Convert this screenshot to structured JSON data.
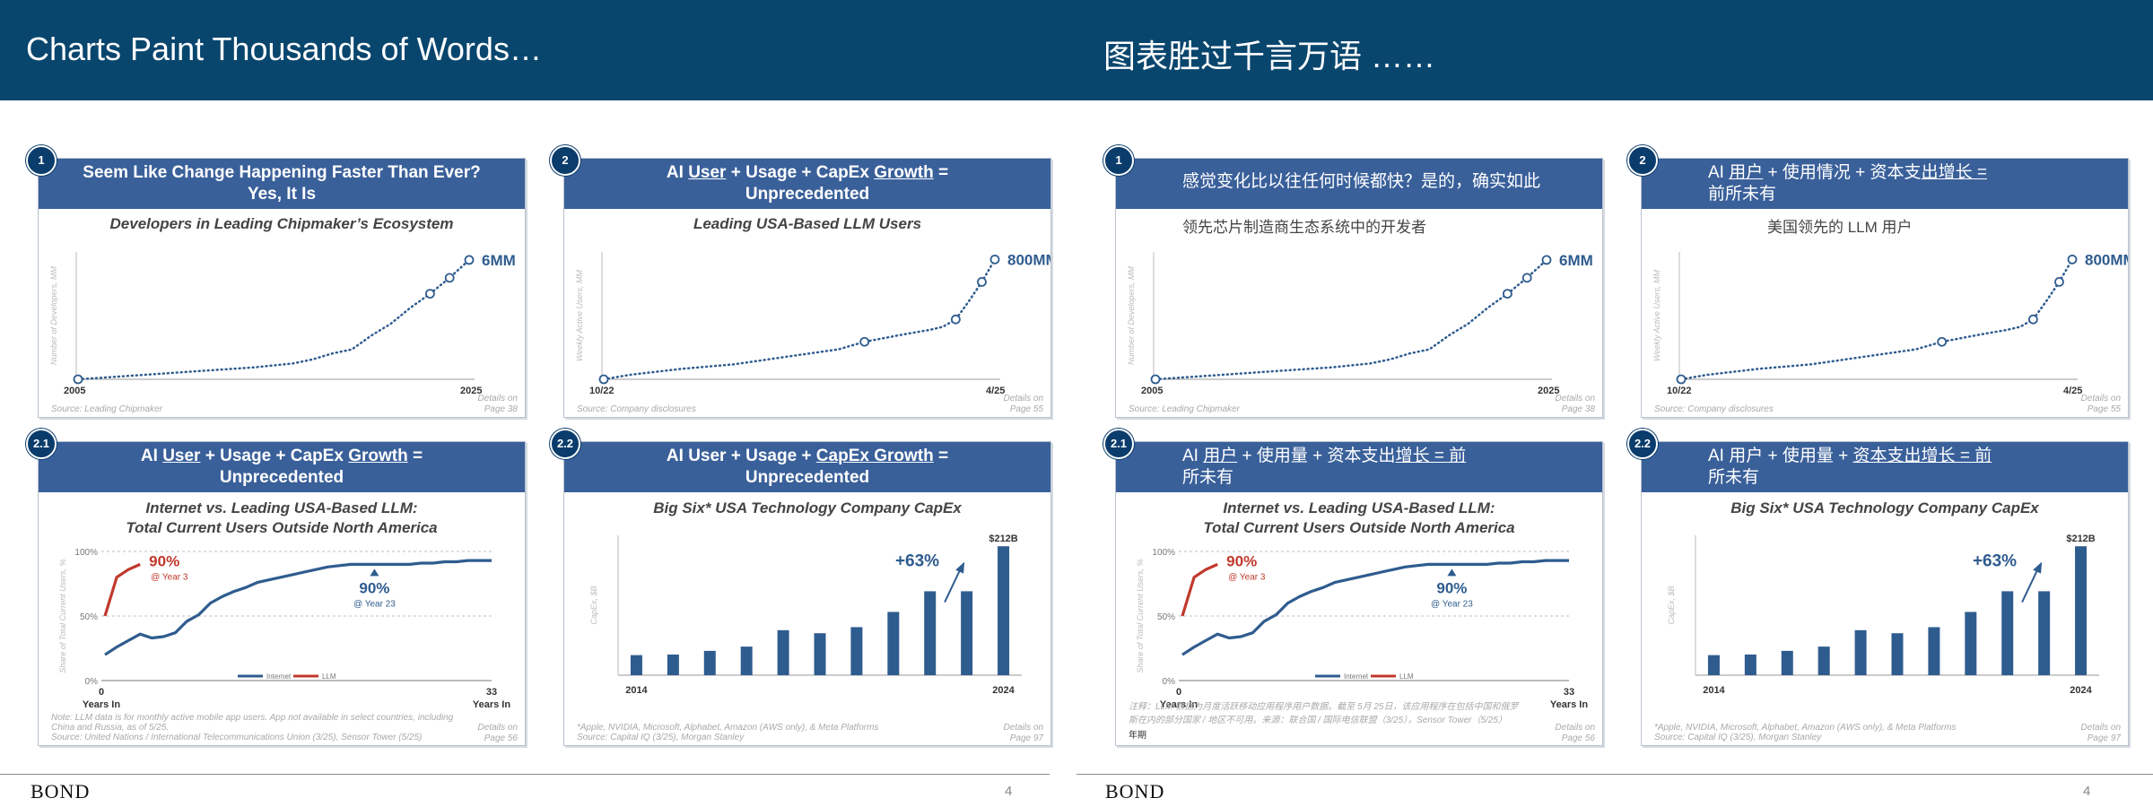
{
  "header": {
    "left_title": "Charts Paint Thousands of Words…",
    "right_title": "图表胜过千言万语 ……"
  },
  "footer": {
    "brand": "BOND",
    "page": "4"
  },
  "left": {
    "p1": {
      "badge": "1",
      "title_l1": "Seem Like Change Happening Faster Than Ever?",
      "title_l2": "Yes, It Is",
      "subtitle": "Developers in Leading Chipmaker’s Ecosystem",
      "source": "Source: Leading Chipmaker",
      "details": "Details on Page 38"
    },
    "p2": {
      "badge": "2",
      "t_ai": "AI ",
      "t_user": "User",
      "t_mid": " + Usage + CapEx ",
      "t_growth": "Growth",
      "t_eq": " =",
      "title_l2": "Unprecedented",
      "subtitle": "Leading USA-Based LLM Users",
      "source": "Source: Company disclosures",
      "details": "Details on Page 55"
    },
    "p3": {
      "badge": "2.1",
      "t_ai": "AI ",
      "t_user": "User",
      "t_mid": " + Usage + CapEx ",
      "t_growth": "Growth",
      "t_eq": " =",
      "title_l2": "Unprecedented",
      "subtitle_l1": "Internet vs. Leading USA-Based LLM:",
      "subtitle_l2": "Total Current Users Outside North America",
      "note1": "Note: LLM data is for monthly active mobile app users. App not available in select countries, including",
      "note2": "China and Russia, as of 5/25.",
      "source": "Source: United Nations / International Telecommunications Union (3/25), Sensor Tower (5/25)",
      "details": "Details on Page 56"
    },
    "p4": {
      "badge": "2.2",
      "t_pre": "AI User + Usage + ",
      "t_capex": "CapEx Growth",
      "t_eq": " =",
      "title_l2": "Unprecedented",
      "subtitle": "Big Six* USA Technology Company CapEx",
      "note1": "*Apple, NVIDIA, Microsoft, Alphabet, Amazon (AWS only), & Meta Platforms",
      "source": "Source: Capital IQ (3/25), Morgan Stanley",
      "details": "Details on Page 97"
    }
  },
  "right": {
    "p1": {
      "badge": "1",
      "title_l1": "感觉变化比以往任何时候都快？是的，确实如此",
      "subtitle": "领先芯片制造商生态系统中的开发者",
      "source": "Source: Leading Chipmaker",
      "details": "Details on Page 38"
    },
    "p2": {
      "badge": "2",
      "t_a": "AI ",
      "t_b": "用户",
      "t_c": " + 使用情况 + 资本支",
      "t_d": "出增长 =",
      "title_l2": "前所未有",
      "subtitle": "美国领先的 LLM 用户",
      "source": "Source: Company disclosures",
      "details": "Details on Page 55"
    },
    "p3": {
      "badge": "2.1",
      "t_a": "AI ",
      "t_b": "用户",
      "t_c": " + 使用量 + 资本支出",
      "t_d": "增长 = 前",
      "title_l2": "所未有",
      "subtitle_l1": "Internet vs. Leading USA-Based LLM:",
      "subtitle_l2": "Total Current Users Outside North America",
      "note1": "注释：LLM 数据为月度活跃移动应用程序用户数据。截至 5月 25日，该应用程序在包括中国和俄罗",
      "note2": "斯在内的部分国家 / 地区不可用。来源：联合国 / 国际电信联盟（3/25），Sensor Tower（5/25）",
      "note3": "年期",
      "source": "",
      "details": "Details on Page 56"
    },
    "p4": {
      "badge": "2.2",
      "t_a": "AI 用户 + 使用量 + ",
      "t_b": "资本支出增长 = 前",
      "title_l2": "所未有",
      "subtitle": "Big Six* USA Technology Company CapEx",
      "note1": "*Apple, NVIDIA, Microsoft, Alphabet, Amazon (AWS only), & Meta Platforms",
      "source": "Source: Capital IQ (3/25), Morgan Stanley",
      "details": "Details on Page 97"
    }
  },
  "chart_data": [
    {
      "id": "developers",
      "type": "line",
      "ylabel": "Number of Developers, MM",
      "xlabel_start": "2005",
      "xlabel_end": "2025",
      "x_range": [
        2005,
        2025
      ],
      "y_range": [
        0,
        6.4
      ],
      "x": [
        2005,
        2008,
        2011,
        2014,
        2016,
        2017,
        2018,
        2019,
        2020,
        2021,
        2022,
        2023,
        2024,
        2025
      ],
      "y": [
        0.0,
        0.2,
        0.4,
        0.6,
        0.8,
        1.0,
        1.3,
        1.5,
        2.2,
        2.8,
        3.6,
        4.3,
        5.1,
        6.0
      ],
      "markers": [
        0,
        11,
        12,
        13
      ],
      "end_label": "6MM",
      "color": "#2f5c8f"
    },
    {
      "id": "llm_users",
      "type": "line",
      "ylabel": "Weekly Active Users, MM",
      "xlabel_start": "10/22",
      "xlabel_end": "4/25",
      "x_range": [
        0,
        30
      ],
      "y_range": [
        0,
        850
      ],
      "x": [
        0,
        2,
        6,
        10,
        14,
        18,
        20,
        23,
        25,
        26,
        27,
        28,
        29,
        30
      ],
      "y": [
        0,
        30,
        70,
        100,
        150,
        200,
        250,
        300,
        330,
        350,
        400,
        520,
        650,
        800
      ],
      "markers": [
        0,
        6,
        10,
        12,
        13
      ],
      "end_label": "800MM",
      "color": "#2f5c8f"
    },
    {
      "id": "internet_vs_llm",
      "type": "line",
      "ylabel": "Share of Total Current Users, %",
      "y_ticks": [
        "0%",
        "50%",
        "100%"
      ],
      "x_start": "0",
      "x_end": "33",
      "x_unit": "Years In",
      "x_range": [
        0,
        33
      ],
      "y_range": [
        0,
        100
      ],
      "series": [
        {
          "name": "Internet",
          "color": "#2f5c8f",
          "x": [
            0,
            1,
            2,
            3,
            4,
            5,
            6,
            7,
            8,
            9,
            10,
            11,
            12,
            13,
            14,
            15,
            16,
            17,
            18,
            19,
            20,
            21,
            22,
            23,
            24,
            25,
            26,
            27,
            28,
            29,
            30,
            31,
            32,
            33
          ],
          "y": [
            20,
            26,
            31,
            36,
            33,
            34,
            37,
            46,
            51,
            60,
            65,
            69,
            72,
            76,
            78,
            80,
            82,
            84,
            86,
            88,
            89,
            90,
            90,
            90,
            90,
            90,
            90,
            91,
            91,
            92,
            92,
            93,
            93,
            93
          ]
        },
        {
          "name": "LLM",
          "color": "#c0392b",
          "x": [
            0,
            1,
            2,
            3
          ],
          "y": [
            50,
            80,
            86,
            90
          ]
        }
      ],
      "annot_llm": "90%",
      "annot_llm_sub": "@ Year 3",
      "annot_net": "90%",
      "annot_net_sub": "@ Year 23"
    },
    {
      "id": "capex",
      "type": "bar",
      "ylabel": "CapEx, $B",
      "xlabel_start": "2014",
      "xlabel_end": "2024",
      "y_range": [
        0,
        230
      ],
      "values": [
        33,
        34,
        40,
        47,
        74,
        69,
        79,
        104,
        138,
        138,
        212
      ],
      "top_label": "$212B",
      "growth_label": "+63%",
      "color": "#2f5c8f"
    }
  ]
}
